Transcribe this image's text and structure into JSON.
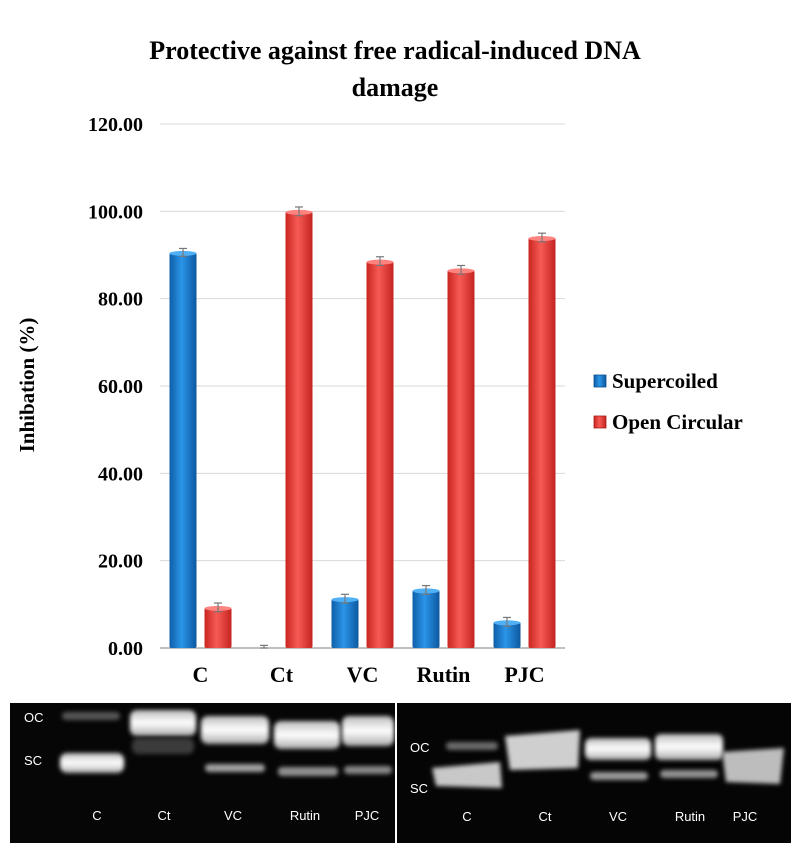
{
  "chart_data": {
    "type": "bar",
    "title_lines": [
      "Protective against free radical-induced DNA",
      "damage"
    ],
    "ylabel": "Inhibation (%)",
    "xlabel": "",
    "ylim": [
      0,
      120
    ],
    "yticks": [
      "0.00",
      "20.00",
      "40.00",
      "60.00",
      "80.00",
      "100.00",
      "120.00"
    ],
    "categories": [
      "C",
      "Ct",
      "VC",
      "Rutin",
      "PJC"
    ],
    "grid": true,
    "legend_position": "right",
    "series": [
      {
        "name": "Supercoiled",
        "color": "#1f7fd0",
        "values": [
          90.6,
          0,
          11.3,
          13.3,
          6.0
        ],
        "errors": [
          0.9,
          0.6,
          1.0,
          1.0,
          1.0
        ]
      },
      {
        "name": "Open Circular",
        "color": "#e8403f",
        "values": [
          9.3,
          100.0,
          88.6,
          86.6,
          94.0
        ],
        "errors": [
          1.0,
          1.0,
          1.0,
          1.0,
          1.0
        ]
      }
    ]
  },
  "gel": {
    "left": {
      "side_labels": [
        "OC",
        "SC"
      ],
      "lanes": [
        "C",
        "Ct",
        "VC",
        "Rutin",
        "PJC"
      ]
    },
    "right": {
      "side_labels": [
        "OC",
        "SC"
      ],
      "lanes": [
        "C",
        "Ct",
        "VC",
        "Rutin",
        "PJC"
      ]
    }
  }
}
